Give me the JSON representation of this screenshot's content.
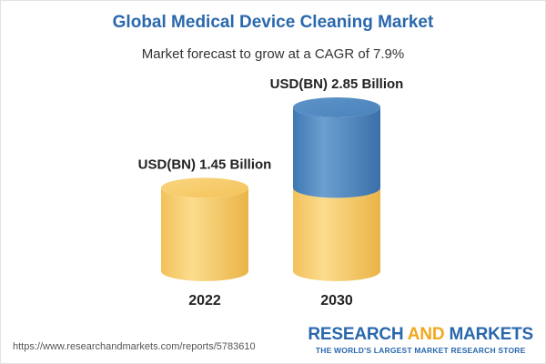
{
  "header": {
    "title": "Global Medical Device Cleaning Market",
    "subtitle": "Market forecast to grow at a CAGR of 7.9%"
  },
  "chart_data": {
    "type": "bar",
    "categories": [
      "2022",
      "2030"
    ],
    "values": [
      1.45,
      2.85
    ],
    "unit": "USD(BN)",
    "data_labels": [
      "USD(BN) 1.45 Billion",
      "USD(BN) 2.85 Billion"
    ],
    "title": "Global Medical Device Cleaning Market",
    "subtitle": "Market forecast to grow at a CAGR of 7.9%",
    "xlabel": "",
    "ylabel": "",
    "grid": false,
    "legend": "none",
    "colors": {
      "base": "#f5c860",
      "growth": "#4d88c1"
    }
  },
  "footer": {
    "url": "https://www.researchandmarkets.com/reports/5783610",
    "brand_word1": "RESEARCH",
    "brand_word2": "AND",
    "brand_word3": "MARKETS",
    "tagline": "THE WORLD'S LARGEST MARKET RESEARCH STORE"
  }
}
